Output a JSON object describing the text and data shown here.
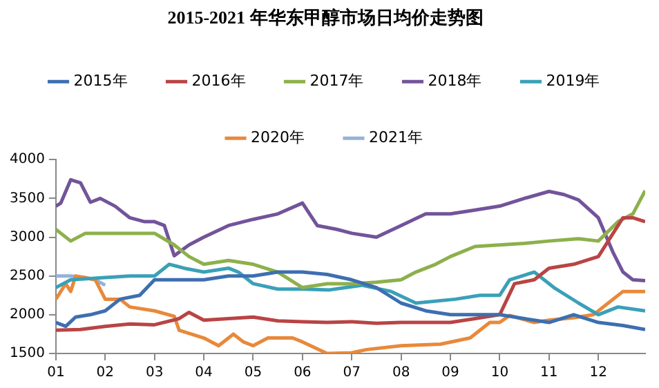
{
  "chart_data": {
    "type": "line",
    "title": "2015-2021 年华东甲醇市场日均价走势图",
    "xlim": [
      1,
      12.95
    ],
    "xticks": [
      {
        "value": 1,
        "label": "01"
      },
      {
        "value": 2,
        "label": "02"
      },
      {
        "value": 3,
        "label": "03"
      },
      {
        "value": 4,
        "label": "04"
      },
      {
        "value": 5,
        "label": "05"
      },
      {
        "value": 6,
        "label": "06"
      },
      {
        "value": 7,
        "label": "07"
      },
      {
        "value": 8,
        "label": "08"
      },
      {
        "value": 9,
        "label": "09"
      },
      {
        "value": 10,
        "label": "10"
      },
      {
        "value": 11,
        "label": "11"
      },
      {
        "value": 12,
        "label": "12"
      }
    ],
    "ylim": [
      1500,
      4000
    ],
    "yticks": [
      1500,
      2000,
      2500,
      3000,
      3500,
      4000
    ],
    "grid": false,
    "legend": "top",
    "marker": "none",
    "line_style": "solid",
    "series": [
      {
        "name": "2015年",
        "color": "#3d6fb0",
        "x": [
          1,
          1.2,
          1.4,
          1.7,
          2,
          2.3,
          2.7,
          3,
          3.5,
          4,
          4.5,
          5,
          5.5,
          6,
          6.5,
          7,
          7.5,
          8,
          8.5,
          9,
          9.5,
          10,
          10.5,
          11,
          11.5,
          12,
          12.5,
          12.95
        ],
        "values": [
          1900,
          1850,
          1970,
          2000,
          2050,
          2200,
          2250,
          2450,
          2450,
          2450,
          2500,
          2500,
          2550,
          2550,
          2520,
          2450,
          2350,
          2150,
          2050,
          2000,
          2000,
          2000,
          1950,
          1900,
          2000,
          1900,
          1860,
          1810
        ]
      },
      {
        "name": "2016年",
        "color": "#b94444",
        "x": [
          1,
          1.5,
          2,
          2.5,
          3,
          3.5,
          3.7,
          4,
          4.5,
          5,
          5.5,
          6,
          6.5,
          7,
          7.5,
          8,
          8.5,
          9,
          9.5,
          10,
          10.3,
          10.7,
          11,
          11.5,
          12,
          12.2,
          12.5,
          12.7,
          12.95
        ],
        "values": [
          1800,
          1810,
          1850,
          1880,
          1870,
          1950,
          2030,
          1930,
          1950,
          1970,
          1920,
          1910,
          1900,
          1910,
          1890,
          1900,
          1900,
          1900,
          1950,
          2000,
          2400,
          2450,
          2600,
          2650,
          2750,
          2950,
          3250,
          3250,
          3200
        ]
      },
      {
        "name": "2017年",
        "color": "#8db04c",
        "x": [
          1,
          1.3,
          1.6,
          2,
          2.5,
          3,
          3.4,
          3.7,
          4,
          4.5,
          5,
          5.5,
          6,
          6.5,
          7,
          7.5,
          8,
          8.3,
          8.7,
          9,
          9.5,
          10,
          10.5,
          11,
          11.6,
          12,
          12.4,
          12.7,
          12.95
        ],
        "values": [
          3100,
          2950,
          3050,
          3050,
          3050,
          3050,
          2900,
          2750,
          2650,
          2700,
          2650,
          2550,
          2350,
          2400,
          2400,
          2420,
          2450,
          2550,
          2650,
          2750,
          2880,
          2900,
          2920,
          2950,
          2980,
          2950,
          3200,
          3300,
          3600
        ]
      },
      {
        "name": "2018年",
        "color": "#72549a",
        "x": [
          1,
          1.1,
          1.3,
          1.5,
          1.7,
          1.9,
          2.2,
          2.5,
          2.8,
          3,
          3.2,
          3.4,
          3.7,
          4,
          4.5,
          5,
          5.5,
          6,
          6.3,
          6.7,
          7,
          7.5,
          8,
          8.5,
          9,
          9.5,
          10,
          10.5,
          11,
          11.3,
          11.6,
          12,
          12.1,
          12.3,
          12.5,
          12.7,
          12.95
        ],
        "values": [
          3400,
          3440,
          3740,
          3700,
          3450,
          3500,
          3400,
          3250,
          3200,
          3200,
          3150,
          2760,
          2900,
          3000,
          3150,
          3230,
          3300,
          3440,
          3150,
          3100,
          3050,
          3000,
          3150,
          3300,
          3300,
          3350,
          3400,
          3500,
          3590,
          3550,
          3480,
          3250,
          3100,
          2800,
          2550,
          2450,
          2440
        ]
      },
      {
        "name": "2019年",
        "color": "#3aa0b8",
        "x": [
          1,
          1.3,
          2,
          2.5,
          3,
          3.3,
          3.6,
          4,
          4.5,
          4.7,
          5,
          5.5,
          6,
          6.55,
          7.2,
          7.8,
          8.3,
          9.1,
          9.6,
          10,
          10.2,
          10.7,
          11.1,
          11.6,
          12,
          12.4,
          12.95
        ],
        "values": [
          2350,
          2450,
          2480,
          2500,
          2500,
          2650,
          2600,
          2550,
          2600,
          2550,
          2400,
          2330,
          2330,
          2320,
          2380,
          2300,
          2150,
          2200,
          2250,
          2250,
          2450,
          2550,
          2350,
          2150,
          2000,
          2100,
          2050
        ]
      },
      {
        "name": "2020年",
        "color": "#e8893a",
        "x": [
          1,
          1.2,
          1.3,
          1.4,
          1.8,
          2,
          2.3,
          2.5,
          3,
          3.4,
          3.5,
          4,
          4.3,
          4.6,
          4.8,
          5,
          5.3,
          5.8,
          6,
          6.5,
          7,
          7.3,
          8,
          8.8,
          9.4,
          9.8,
          10,
          10.2,
          10.7,
          11,
          11.5,
          11.9,
          12.2,
          12.5,
          12.95
        ],
        "values": [
          2200,
          2400,
          2300,
          2500,
          2450,
          2200,
          2200,
          2100,
          2050,
          1980,
          1800,
          1700,
          1600,
          1750,
          1650,
          1600,
          1700,
          1700,
          1650,
          1500,
          1510,
          1550,
          1600,
          1620,
          1700,
          1900,
          1900,
          1990,
          1900,
          1930,
          1960,
          2000,
          2150,
          2300,
          2300
        ]
      },
      {
        "name": "2021年",
        "color": "#95b3d7",
        "x": [
          1,
          1.3,
          1.6,
          1.8,
          2
        ],
        "values": [
          2500,
          2500,
          2480,
          2450,
          2380
        ]
      }
    ]
  }
}
